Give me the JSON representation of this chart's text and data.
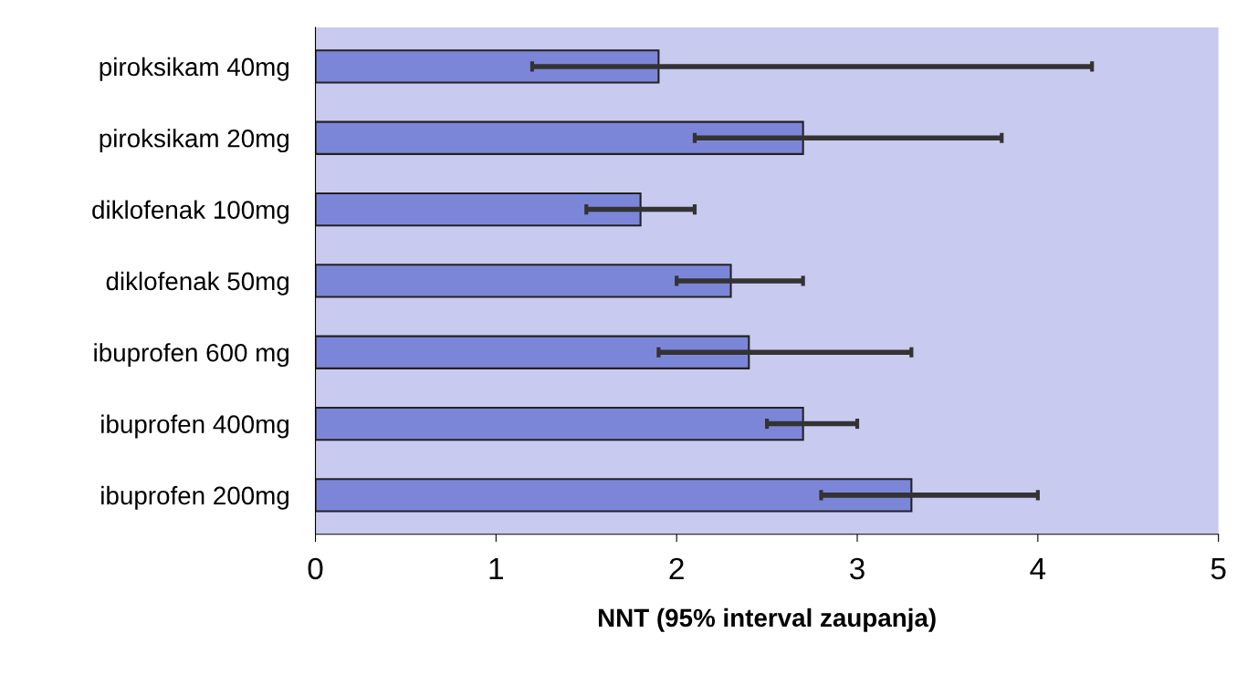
{
  "chart_data": {
    "type": "bar",
    "orientation": "horizontal",
    "xlabel": "NNT (95% interval zaupanja)",
    "categories": [
      "piroksikam 40mg",
      "piroksikam 20mg",
      "diklofenak 100mg",
      "diklofenak 50mg",
      "ibuprofen 600 mg",
      "ibuprofen 400mg",
      "ibuprofen 200mg"
    ],
    "values": [
      1.9,
      2.7,
      1.8,
      2.3,
      2.4,
      2.7,
      3.3
    ],
    "errors": [
      [
        1.2,
        4.3
      ],
      [
        2.1,
        3.8
      ],
      [
        1.5,
        2.1
      ],
      [
        2.0,
        2.7
      ],
      [
        1.9,
        3.3
      ],
      [
        2.5,
        3.0
      ],
      [
        2.8,
        4.0
      ]
    ],
    "color": "#7c86d8",
    "xlim": [
      0,
      5
    ],
    "xticks": [
      0,
      1,
      2,
      3,
      4,
      5
    ],
    "grid": false
  }
}
